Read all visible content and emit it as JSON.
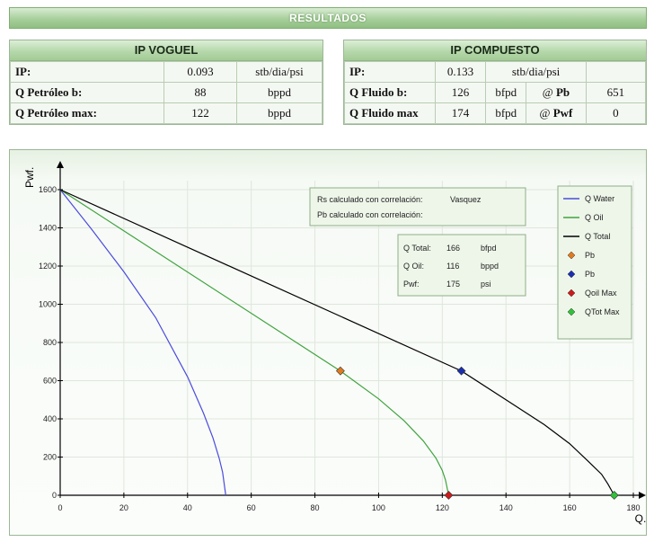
{
  "header": {
    "title": "RESULTADOS"
  },
  "ip_voguel": {
    "title": "IP VOGUEL",
    "rows": [
      {
        "label": "IP:",
        "value": "0.093",
        "unit": "stb/dia/psi"
      },
      {
        "label": "Q Petróleo b:",
        "value": "88",
        "unit": "bppd"
      },
      {
        "label": "Q Petróleo max:",
        "value": "122",
        "unit": "bppd"
      }
    ]
  },
  "ip_compuesto": {
    "title": "IP COMPUESTO",
    "rows": [
      {
        "label": "IP:",
        "value": "0.133",
        "unit": "stb/dia/psi",
        "at_label": "",
        "extra": ""
      },
      {
        "label": "Q Fluido b:",
        "value": "126",
        "unit": "bfpd",
        "at_label": "Pb",
        "extra": "651"
      },
      {
        "label": "Q Fluido max",
        "value": "174",
        "unit": "bfpd",
        "at_label": "Pwf",
        "extra": "0"
      }
    ]
  },
  "info_box": {
    "rs_label": "Rs calculado con correlación:",
    "rs_value": "Vasquez",
    "pb_label": "Pb calculado con correlación:",
    "pb_value": ""
  },
  "totals_box": {
    "rows": [
      {
        "label": "Q Total:",
        "value": "166",
        "unit": "bfpd"
      },
      {
        "label": "Q Oil:",
        "value": "116",
        "unit": "bppd"
      },
      {
        "label": "Pwf:",
        "value": "175",
        "unit": "psi"
      }
    ]
  },
  "chart_data": {
    "type": "line",
    "xlabel": "Q.",
    "ylabel": "Pwf.",
    "xlim": [
      0,
      180
    ],
    "ylim": [
      0,
      1600
    ],
    "x_ticks": [
      "0",
      "20",
      "40",
      "60",
      "80",
      "100",
      "120",
      "140",
      "160",
      "180"
    ],
    "y_ticks": [
      "0",
      "200",
      "400",
      "600",
      "800",
      "1000",
      "1200",
      "1400",
      "1600"
    ],
    "grid": true,
    "legend_position": "top-right",
    "series": [
      {
        "name": "Q Water",
        "color": "#4b4bdc",
        "type": "line",
        "points": [
          [
            0,
            1600
          ],
          [
            10,
            1390
          ],
          [
            20,
            1170
          ],
          [
            30,
            930
          ],
          [
            40,
            620
          ],
          [
            45,
            430
          ],
          [
            48,
            300
          ],
          [
            50,
            190
          ],
          [
            51,
            120
          ],
          [
            52,
            0
          ]
        ]
      },
      {
        "name": "Q Oil",
        "color": "#3fa33f",
        "type": "line",
        "points": [
          [
            0,
            1600
          ],
          [
            88,
            651
          ],
          [
            100,
            505
          ],
          [
            108,
            390
          ],
          [
            114,
            285
          ],
          [
            118,
            195
          ],
          [
            120,
            130
          ],
          [
            121,
            80
          ],
          [
            122,
            0
          ]
        ]
      },
      {
        "name": "Q Total",
        "color": "#000000",
        "type": "line",
        "points": [
          [
            0,
            1600
          ],
          [
            126,
            651
          ],
          [
            140,
            500
          ],
          [
            152,
            370
          ],
          [
            160,
            270
          ],
          [
            166,
            175
          ],
          [
            170,
            110
          ],
          [
            172,
            60
          ],
          [
            174,
            0
          ]
        ]
      }
    ],
    "markers": [
      {
        "name": "Pb",
        "color": "#e07a1f",
        "x": 88,
        "y": 651
      },
      {
        "name": "Pb",
        "color": "#1a2fb0",
        "x": 126,
        "y": 651
      },
      {
        "name": "Qoil Max",
        "color": "#cc1b1b",
        "x": 122,
        "y": 0
      },
      {
        "name": "QTot Max",
        "color": "#2fc23a",
        "x": 174,
        "y": 0
      }
    ]
  }
}
